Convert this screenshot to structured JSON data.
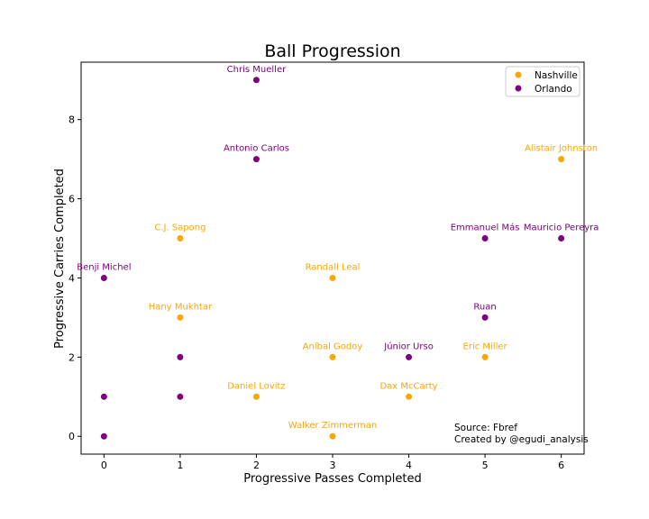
{
  "chart_data": {
    "type": "scatter",
    "title": "Ball Progression",
    "xlabel": "Progressive Passes Completed",
    "ylabel": "Progressive Carries Completed",
    "xlim": [
      -0.3,
      6.3
    ],
    "ylim": [
      -0.45,
      9.45
    ],
    "xticks": [
      "0",
      "1",
      "2",
      "3",
      "4",
      "5",
      "6"
    ],
    "yticks": [
      "0",
      "2",
      "4",
      "6",
      "8"
    ],
    "grid": false,
    "legend_position": "top-right",
    "series": [
      {
        "name": "Nashville",
        "color": "#FFA500",
        "points": [
          {
            "x": 6,
            "y": 7,
            "label": "Alistair Johnston"
          },
          {
            "x": 1,
            "y": 5,
            "label": "C.J. Sapong"
          },
          {
            "x": 3,
            "y": 4,
            "label": "Randall Leal"
          },
          {
            "x": 1,
            "y": 3,
            "label": "Hany Mukhtar"
          },
          {
            "x": 3,
            "y": 2,
            "label": "Aníbal Godoy"
          },
          {
            "x": 5,
            "y": 2,
            "label": "Eric Miller"
          },
          {
            "x": 2,
            "y": 1,
            "label": "Daniel Lovitz"
          },
          {
            "x": 4,
            "y": 1,
            "label": "Dax McCarty"
          },
          {
            "x": 3,
            "y": 0,
            "label": "Walker Zimmerman"
          }
        ]
      },
      {
        "name": "Orlando",
        "color": "#800080",
        "points": [
          {
            "x": 2,
            "y": 9,
            "label": "Chris Mueller"
          },
          {
            "x": 2,
            "y": 7,
            "label": "Antonio Carlos"
          },
          {
            "x": 5,
            "y": 5,
            "label": "Emmanuel Más"
          },
          {
            "x": 6,
            "y": 5,
            "label": "Mauricio Pereyra"
          },
          {
            "x": 0,
            "y": 4,
            "label": "Benji Michel"
          },
          {
            "x": 5,
            "y": 3,
            "label": "Ruan"
          },
          {
            "x": 4,
            "y": 2,
            "label": "Júnior Urso"
          },
          {
            "x": 1,
            "y": 2,
            "label": ""
          },
          {
            "x": 1,
            "y": 1,
            "label": ""
          },
          {
            "x": 0,
            "y": 1,
            "label": ""
          },
          {
            "x": 0,
            "y": 0,
            "label": ""
          }
        ]
      }
    ],
    "annotations": [
      "Source: Fbref",
      "Created by @egudi_analysis"
    ]
  }
}
